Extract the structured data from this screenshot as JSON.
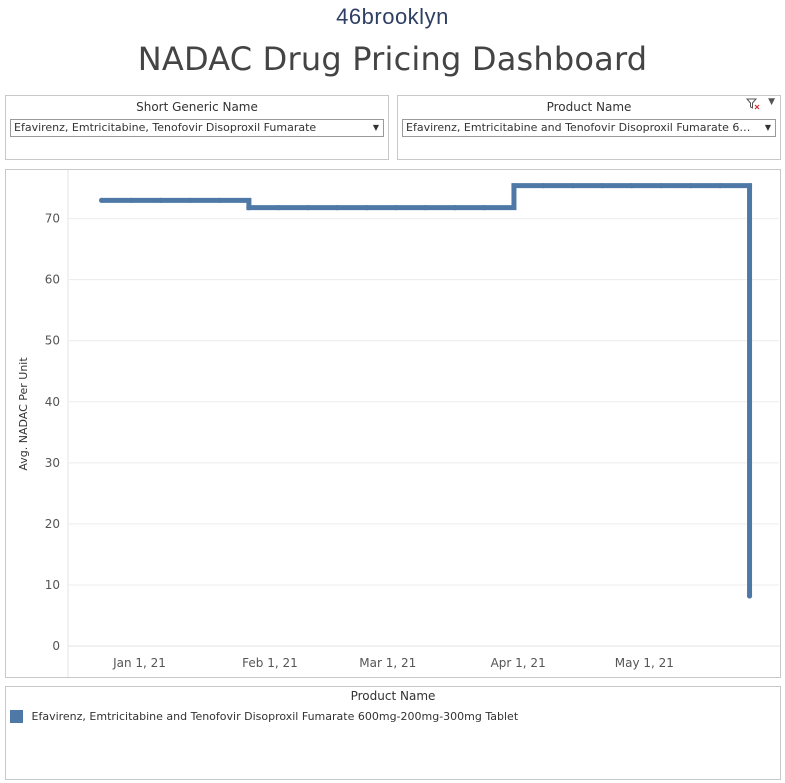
{
  "logo": {
    "text": "46brooklyn"
  },
  "dashboard": {
    "title": "NADAC Drug Pricing Dashboard"
  },
  "filters": {
    "short_generic": {
      "label": "Short Generic Name",
      "value": "Efavirenz, Emtricitabine, Tenofovir Disoproxil Fumarate"
    },
    "product": {
      "label": "Product Name",
      "value": "Efavirenz, Emtricitabine and Tenofovir Disoproxil Fumarate 600mg-200mg-300mg Tablet"
    }
  },
  "colors": {
    "series": "#4e79a7",
    "grid": "#ececec",
    "logo": "#2e3f63"
  },
  "legend": {
    "title": "Product Name",
    "items": [
      {
        "label": "Efavirenz, Emtricitabine and Tenofovir Disoproxil Fumarate 600mg-200mg-300mg Tablet",
        "color": "#4e79a7"
      }
    ]
  },
  "chart_data": {
    "type": "line",
    "step": true,
    "title": "",
    "xlabel": "",
    "ylabel": "Avg. NADAC Per Unit",
    "ylim": [
      0,
      76
    ],
    "xlim": [
      "2020-12-15",
      "2021-06-02"
    ],
    "yticks": [
      0,
      10,
      20,
      30,
      40,
      50,
      60,
      70
    ],
    "xticks": [
      {
        "date": "2021-01-01",
        "label": "Jan 1, 21"
      },
      {
        "date": "2021-02-01",
        "label": "Feb 1, 21"
      },
      {
        "date": "2021-03-01",
        "label": "Mar 1, 21"
      },
      {
        "date": "2021-04-01",
        "label": "Apr 1, 21"
      },
      {
        "date": "2021-05-01",
        "label": "May 1, 21"
      }
    ],
    "grid": true,
    "series": [
      {
        "name": "Efavirenz, Emtricitabine and Tenofovir Disoproxil Fumarate 600mg-200mg-300mg Tablet",
        "x": [
          "2020-12-23",
          "2020-12-30",
          "2021-01-06",
          "2021-01-13",
          "2021-01-20",
          "2021-01-27",
          "2021-02-03",
          "2021-02-10",
          "2021-02-17",
          "2021-02-24",
          "2021-03-03",
          "2021-03-10",
          "2021-03-17",
          "2021-03-24",
          "2021-03-31",
          "2021-04-07",
          "2021-04-14",
          "2021-04-21",
          "2021-04-28",
          "2021-05-05",
          "2021-05-12",
          "2021-05-19",
          "2021-05-26",
          "2021-05-26"
        ],
        "y": [
          73.0,
          73.0,
          73.0,
          73.0,
          73.0,
          71.8,
          71.8,
          71.8,
          71.8,
          71.8,
          71.8,
          71.8,
          71.8,
          71.8,
          75.4,
          75.4,
          75.4,
          75.4,
          75.4,
          75.4,
          75.4,
          75.4,
          75.4,
          8.2
        ]
      }
    ]
  }
}
